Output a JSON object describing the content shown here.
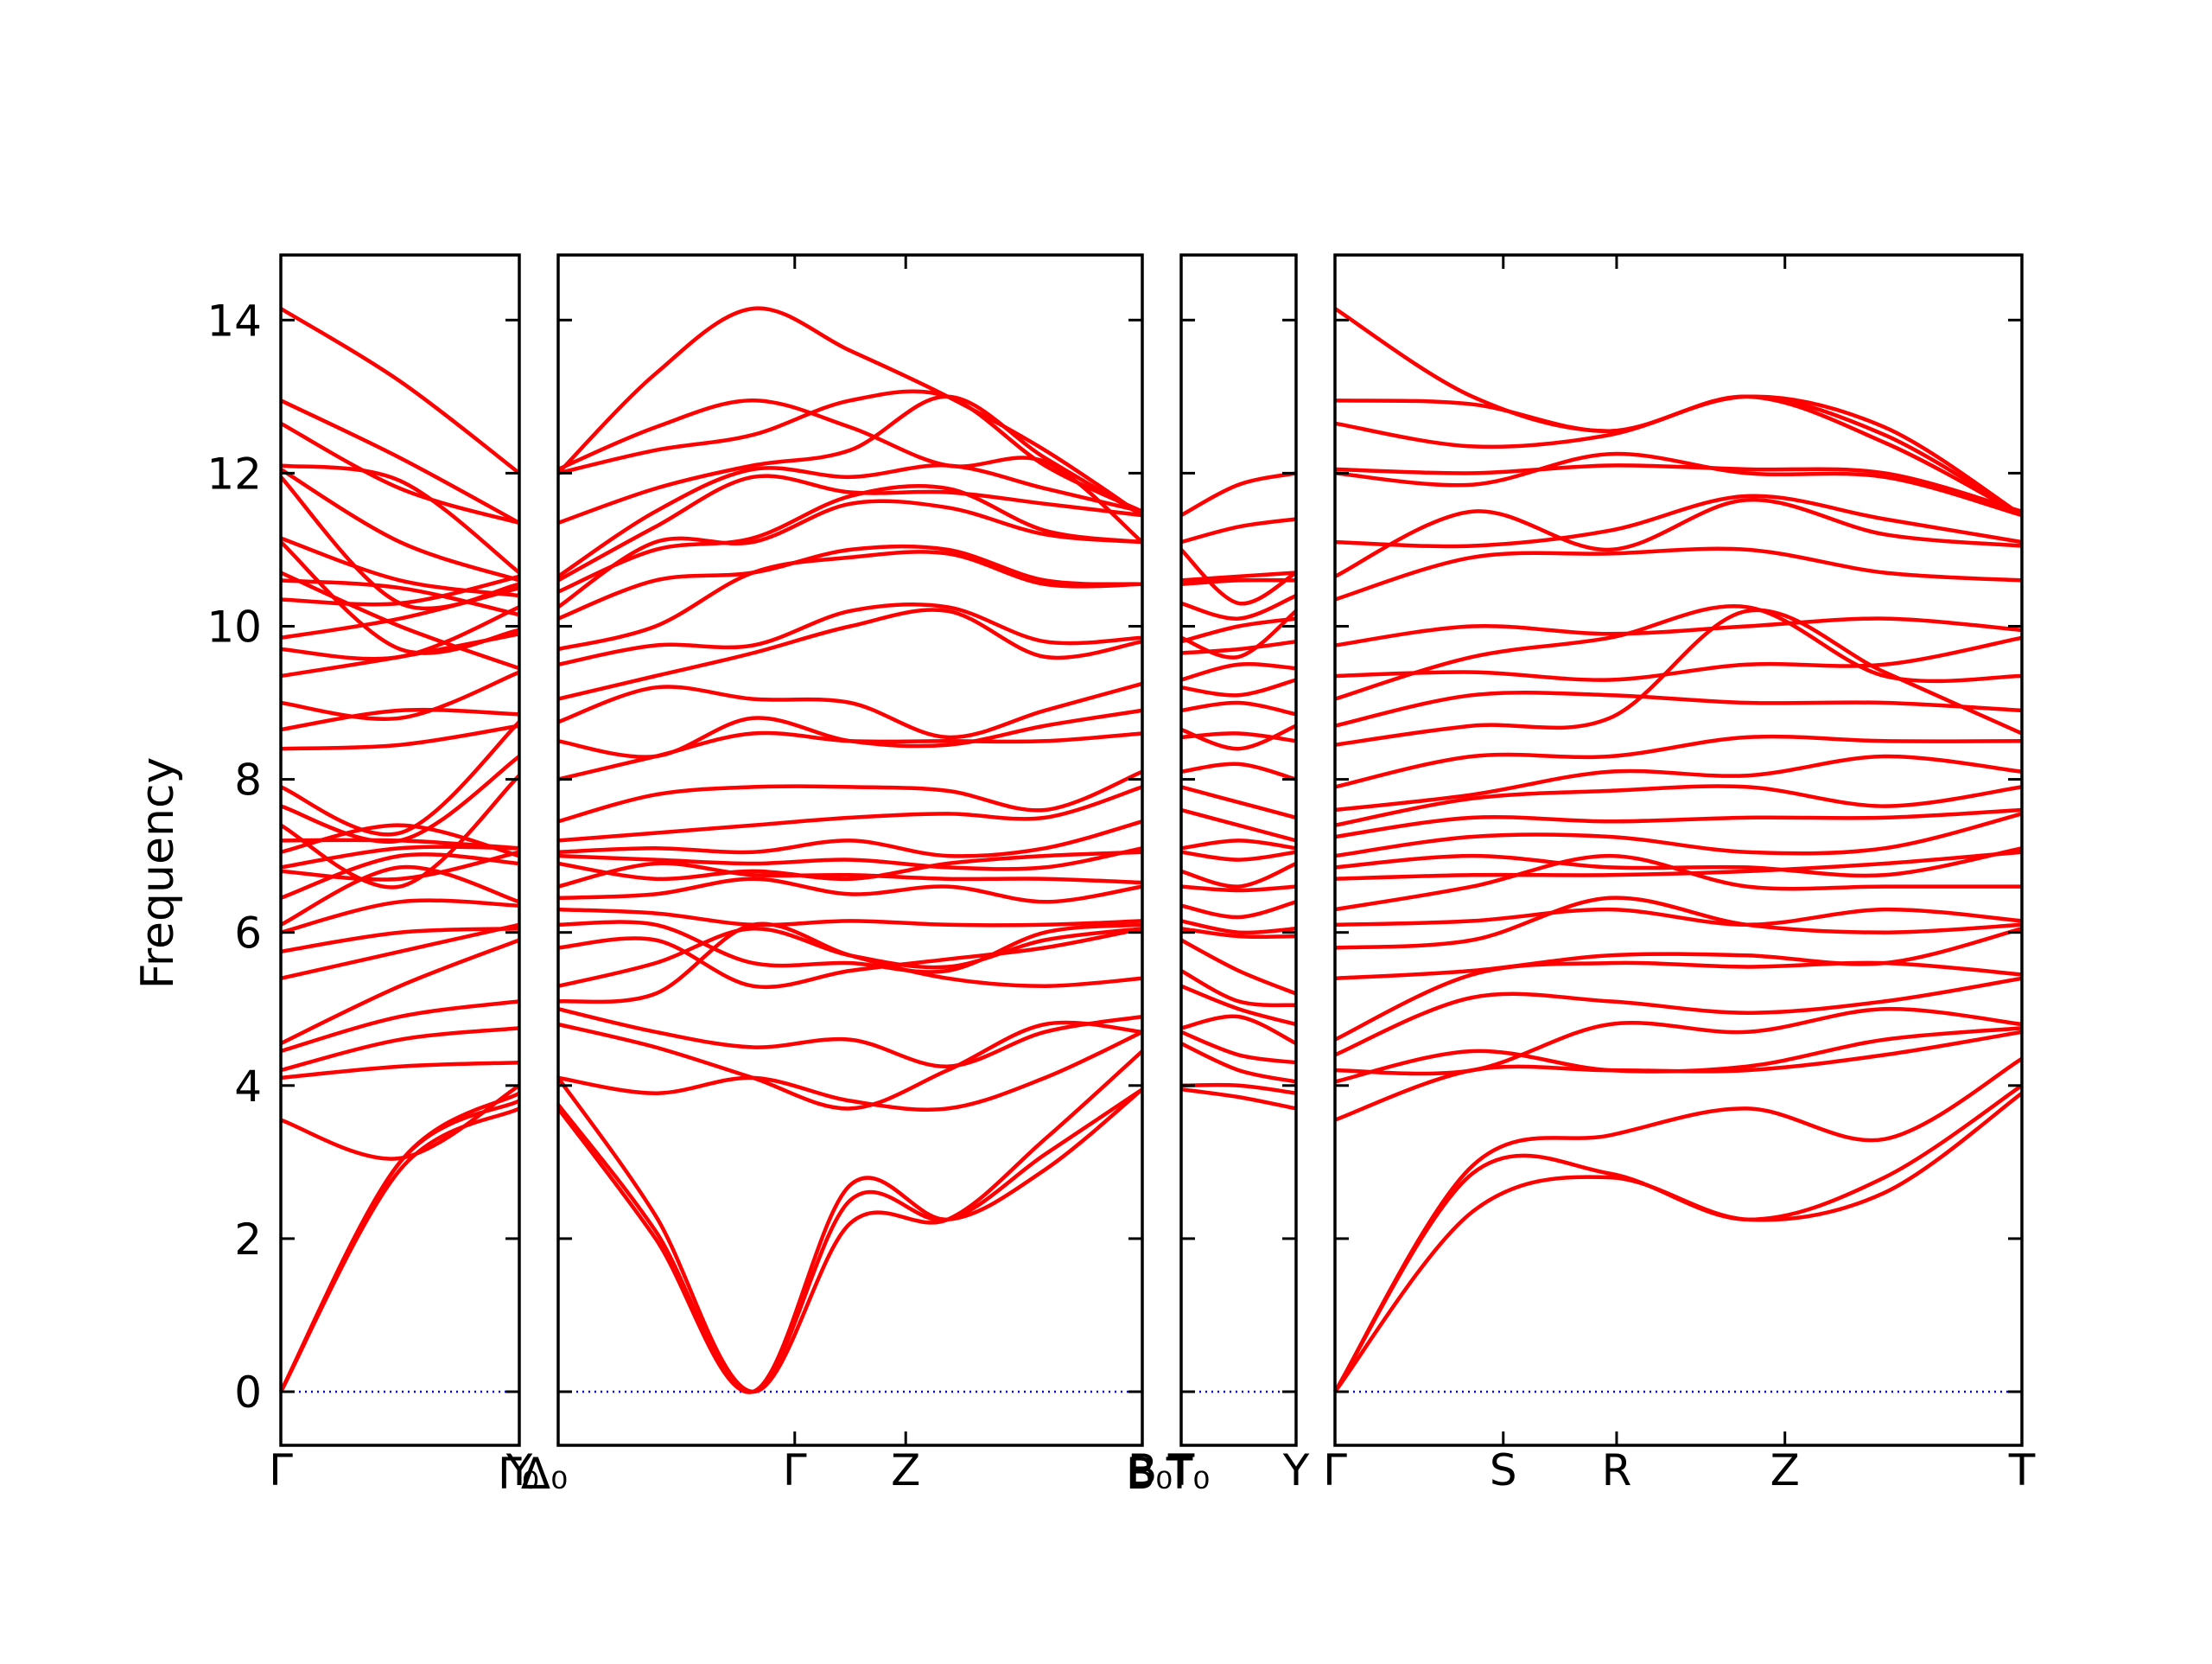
{
  "chart_data": {
    "type": "line",
    "title": "",
    "xlabel": "",
    "ylabel": "Frequency",
    "ylim": [
      -0.7,
      14.85
    ],
    "y_ticks": [
      "0",
      "2",
      "4",
      "6",
      "8",
      "10",
      "12",
      "14"
    ],
    "grid": false,
    "legend": "none",
    "colors": {
      "band": "#ff0000",
      "zero_line": "#0000ff",
      "frame": "#000000"
    },
    "panels": [
      {
        "x_ticks": [
          {
            "label": "Γ",
            "frac": 0.0
          },
          {
            "label": "Y",
            "frac": 1.0
          }
        ],
        "extra_labels": [
          "Γ₀"
        ],
        "bands": [
          [
            0,
            3.0,
            3.9
          ],
          [
            0,
            3.0,
            3.8
          ],
          [
            0,
            2.9,
            3.7
          ],
          [
            3.55,
            3.05,
            4.0
          ],
          [
            4.1,
            4.25,
            4.3
          ],
          [
            4.2,
            4.6,
            4.75
          ],
          [
            4.45,
            4.9,
            5.1
          ],
          [
            4.55,
            5.3,
            5.9
          ],
          [
            5.4,
            5.75,
            6.1
          ],
          [
            5.75,
            6.0,
            6.05
          ],
          [
            6.0,
            6.4,
            6.35
          ],
          [
            6.1,
            6.85,
            6.4
          ],
          [
            6.45,
            7.0,
            6.9
          ],
          [
            6.8,
            6.7,
            7.05
          ],
          [
            6.85,
            7.1,
            7.1
          ],
          [
            7.05,
            7.4,
            7.0
          ],
          [
            7.2,
            7.2,
            7.1
          ],
          [
            7.4,
            6.6,
            8.05
          ],
          [
            7.65,
            7.2,
            8.3
          ],
          [
            7.9,
            7.3,
            8.75
          ],
          [
            8.4,
            8.45,
            8.7
          ],
          [
            8.65,
            8.9,
            8.85
          ],
          [
            9.0,
            8.8,
            9.4
          ],
          [
            9.35,
            9.6,
            9.9
          ],
          [
            9.7,
            9.6,
            10.25
          ],
          [
            9.85,
            10.1,
            10.5
          ],
          [
            10.35,
            10.3,
            10.65
          ],
          [
            10.6,
            10.5,
            10.15
          ],
          [
            10.7,
            10.0,
            9.45
          ],
          [
            11.1,
            9.7,
            9.95
          ],
          [
            11.15,
            10.6,
            10.4
          ],
          [
            11.95,
            10.3,
            10.55
          ],
          [
            12.05,
            11.1,
            10.6
          ],
          [
            12.1,
            11.9,
            10.7
          ],
          [
            12.65,
            11.8,
            11.35
          ],
          [
            12.95,
            12.2,
            11.35
          ],
          [
            14.15,
            13.2,
            12.0
          ]
        ]
      },
      {
        "x_ticks": [
          {
            "label": "Γ",
            "frac": 0.405
          },
          {
            "label": "Z",
            "frac": 0.595
          },
          {
            "label": "B",
            "frac": 1.0
          }
        ],
        "extra_labels": [
          "Δ₀",
          "B₀"
        ],
        "bands": [
          [
            3.7,
            2.0,
            0,
            2.7,
            2.25,
            2.9,
            3.95
          ],
          [
            3.75,
            2.1,
            0,
            2.5,
            2.25,
            3.1,
            3.95
          ],
          [
            4.1,
            2.3,
            0,
            2.2,
            2.25,
            3.3,
            4.45
          ],
          [
            4.1,
            3.9,
            4.1,
            3.8,
            3.7,
            4.1,
            4.7
          ],
          [
            4.8,
            4.5,
            4.1,
            3.7,
            4.2,
            4.8,
            4.7
          ],
          [
            5.0,
            4.7,
            4.5,
            4.6,
            4.25,
            4.7,
            4.9
          ],
          [
            5.1,
            5.2,
            6.1,
            5.7,
            5.4,
            5.3,
            5.4
          ],
          [
            5.3,
            5.6,
            6.05,
            5.7,
            5.55,
            5.9,
            6.05
          ],
          [
            5.8,
            5.9,
            5.3,
            5.5,
            5.65,
            5.8,
            6.05
          ],
          [
            6.1,
            6.1,
            5.6,
            5.6,
            5.5,
            6.0,
            6.1
          ],
          [
            6.3,
            6.25,
            6.1,
            6.15,
            6.1,
            6.1,
            6.15
          ],
          [
            6.45,
            6.5,
            6.7,
            6.5,
            6.6,
            6.4,
            6.6
          ],
          [
            6.6,
            6.9,
            6.75,
            6.75,
            6.7,
            6.7,
            6.65
          ],
          [
            6.9,
            6.7,
            6.8,
            6.7,
            6.9,
            7.0,
            7.05
          ],
          [
            7.0,
            6.95,
            6.9,
            6.95,
            6.85,
            6.85,
            7.1
          ],
          [
            7.05,
            7.1,
            7.05,
            7.2,
            7.0,
            7.1,
            7.45
          ],
          [
            7.2,
            7.3,
            7.4,
            7.5,
            7.55,
            7.5,
            7.9
          ],
          [
            7.45,
            7.8,
            7.9,
            7.9,
            7.85,
            7.6,
            8.1
          ],
          [
            8.0,
            8.3,
            8.6,
            8.5,
            8.5,
            8.5,
            8.6
          ],
          [
            8.5,
            8.3,
            8.8,
            8.5,
            8.45,
            8.7,
            8.9
          ],
          [
            8.75,
            9.2,
            9.05,
            9.0,
            8.55,
            8.9,
            9.25
          ],
          [
            9.05,
            9.35,
            9.65,
            10.0,
            10.2,
            9.6,
            9.8
          ],
          [
            9.5,
            9.75,
            9.75,
            10.2,
            10.25,
            9.8,
            9.85
          ],
          [
            9.7,
            10.0,
            10.7,
            10.9,
            10.95,
            10.55,
            10.55
          ],
          [
            10.1,
            10.6,
            10.7,
            11.0,
            11.0,
            10.6,
            10.55
          ],
          [
            10.25,
            11.1,
            11.1,
            11.6,
            11.55,
            11.2,
            11.1
          ],
          [
            10.45,
            11.0,
            11.15,
            11.7,
            11.8,
            11.25,
            11.1
          ],
          [
            10.6,
            11.3,
            11.95,
            11.75,
            11.75,
            11.6,
            11.45
          ],
          [
            10.65,
            11.5,
            12.05,
            11.95,
            12.1,
            11.8,
            11.5
          ],
          [
            11.35,
            11.8,
            12.1,
            12.3,
            13.0,
            12.2,
            11.45
          ],
          [
            12.0,
            12.3,
            12.5,
            12.95,
            13.0,
            12.1,
            11.5
          ],
          [
            12.05,
            12.6,
            12.95,
            12.6,
            12.1,
            12.15,
            11.1
          ],
          [
            12.0,
            13.3,
            14.15,
            13.6,
            13.0,
            12.3,
            11.45
          ]
        ]
      },
      {
        "x_ticks": [
          {
            "label": "T",
            "frac": 0.0
          },
          {
            "label": "Y",
            "frac": 1.0
          }
        ],
        "extra_labels": [
          "T₀"
        ],
        "bands": [
          [
            3.95,
            3.85,
            3.7
          ],
          [
            4.0,
            4.0,
            3.9
          ],
          [
            4.55,
            4.2,
            4.05
          ],
          [
            4.7,
            4.4,
            4.3
          ],
          [
            4.75,
            4.9,
            4.55
          ],
          [
            5.3,
            5.0,
            4.8
          ],
          [
            5.5,
            5.1,
            5.05
          ],
          [
            5.9,
            5.5,
            5.2
          ],
          [
            6.05,
            5.95,
            5.95
          ],
          [
            6.15,
            6.0,
            6.05
          ],
          [
            6.35,
            6.2,
            6.4
          ],
          [
            6.6,
            6.55,
            6.6
          ],
          [
            6.8,
            6.6,
            6.9
          ],
          [
            7.05,
            6.95,
            7.05
          ],
          [
            7.1,
            7.2,
            7.1
          ],
          [
            7.6,
            7.4,
            7.2
          ],
          [
            7.9,
            7.7,
            7.5
          ],
          [
            8.1,
            8.2,
            8.0
          ],
          [
            8.55,
            8.6,
            8.5
          ],
          [
            8.65,
            8.4,
            8.7
          ],
          [
            8.9,
            9.0,
            8.85
          ],
          [
            9.2,
            9.1,
            9.3
          ],
          [
            9.3,
            9.5,
            9.45
          ],
          [
            9.65,
            9.7,
            9.8
          ],
          [
            9.8,
            10.0,
            10.1
          ],
          [
            9.85,
            9.6,
            10.2
          ],
          [
            10.3,
            10.1,
            10.4
          ],
          [
            10.55,
            10.6,
            10.6
          ],
          [
            10.6,
            10.65,
            10.7
          ],
          [
            11.0,
            10.3,
            10.7
          ],
          [
            11.1,
            11.3,
            11.4
          ],
          [
            11.45,
            11.85,
            12.0
          ]
        ]
      },
      {
        "x_ticks": [
          {
            "label": "Γ",
            "frac": 0.0
          },
          {
            "label": "S",
            "frac": 0.245
          },
          {
            "label": "R",
            "frac": 0.41
          },
          {
            "label": "Z",
            "frac": 0.655
          },
          {
            "label": "T",
            "frac": 1.0
          }
        ],
        "extra_labels": [],
        "bands": [
          [
            0,
            2.35,
            2.8,
            2.25,
            2.6,
            3.9
          ],
          [
            0,
            2.85,
            2.85,
            2.25,
            2.8,
            4.0
          ],
          [
            0,
            2.95,
            3.35,
            3.7,
            3.3,
            4.35
          ],
          [
            3.55,
            4.2,
            4.2,
            4.2,
            4.4,
            4.7
          ],
          [
            4.05,
            4.45,
            4.2,
            4.25,
            4.6,
            4.75
          ],
          [
            4.2,
            4.2,
            4.8,
            4.7,
            5.0,
            4.8
          ],
          [
            4.4,
            5.15,
            5.1,
            4.95,
            5.1,
            5.4
          ],
          [
            4.6,
            5.45,
            5.6,
            5.55,
            5.6,
            5.45
          ],
          [
            5.4,
            5.5,
            5.7,
            5.7,
            5.6,
            6.05
          ],
          [
            5.8,
            5.9,
            6.45,
            6.1,
            6.0,
            6.1
          ],
          [
            6.1,
            6.15,
            6.3,
            6.1,
            6.3,
            6.15
          ],
          [
            6.3,
            6.6,
            7.0,
            6.6,
            6.6,
            6.6
          ],
          [
            6.7,
            6.75,
            6.75,
            6.8,
            6.9,
            7.05
          ],
          [
            6.85,
            7.0,
            6.85,
            6.85,
            6.75,
            7.1
          ],
          [
            7.0,
            7.25,
            7.25,
            7.05,
            7.1,
            7.55
          ],
          [
            7.25,
            7.5,
            7.45,
            7.5,
            7.5,
            7.6
          ],
          [
            7.4,
            7.75,
            7.85,
            7.9,
            7.65,
            7.9
          ],
          [
            7.6,
            7.8,
            8.1,
            8.05,
            8.3,
            8.1
          ],
          [
            7.9,
            8.3,
            8.3,
            8.55,
            8.5,
            8.5
          ],
          [
            8.45,
            8.7,
            8.8,
            10.2,
            9.4,
            8.6
          ],
          [
            8.7,
            9.1,
            9.1,
            9.0,
            9.0,
            8.9
          ],
          [
            9.05,
            9.6,
            9.85,
            10.25,
            9.35,
            9.35
          ],
          [
            9.35,
            9.4,
            9.3,
            9.5,
            9.5,
            9.85
          ],
          [
            9.75,
            10.0,
            9.9,
            10.0,
            10.1,
            9.95
          ],
          [
            10.35,
            10.9,
            10.95,
            11.0,
            10.7,
            10.6
          ],
          [
            10.65,
            11.5,
            11.0,
            11.65,
            11.2,
            11.05
          ],
          [
            11.1,
            11.05,
            11.25,
            11.7,
            11.4,
            11.1
          ],
          [
            12.0,
            11.85,
            12.25,
            12.0,
            11.95,
            11.45
          ],
          [
            12.05,
            12.0,
            12.1,
            12.05,
            12.0,
            11.5
          ],
          [
            12.65,
            12.35,
            12.5,
            13.0,
            12.6,
            11.45
          ],
          [
            12.95,
            12.9,
            12.55,
            13.0,
            12.5,
            11.45
          ],
          [
            14.15,
            13.0,
            12.55,
            13.0,
            12.4,
            11.45
          ]
        ]
      }
    ]
  }
}
